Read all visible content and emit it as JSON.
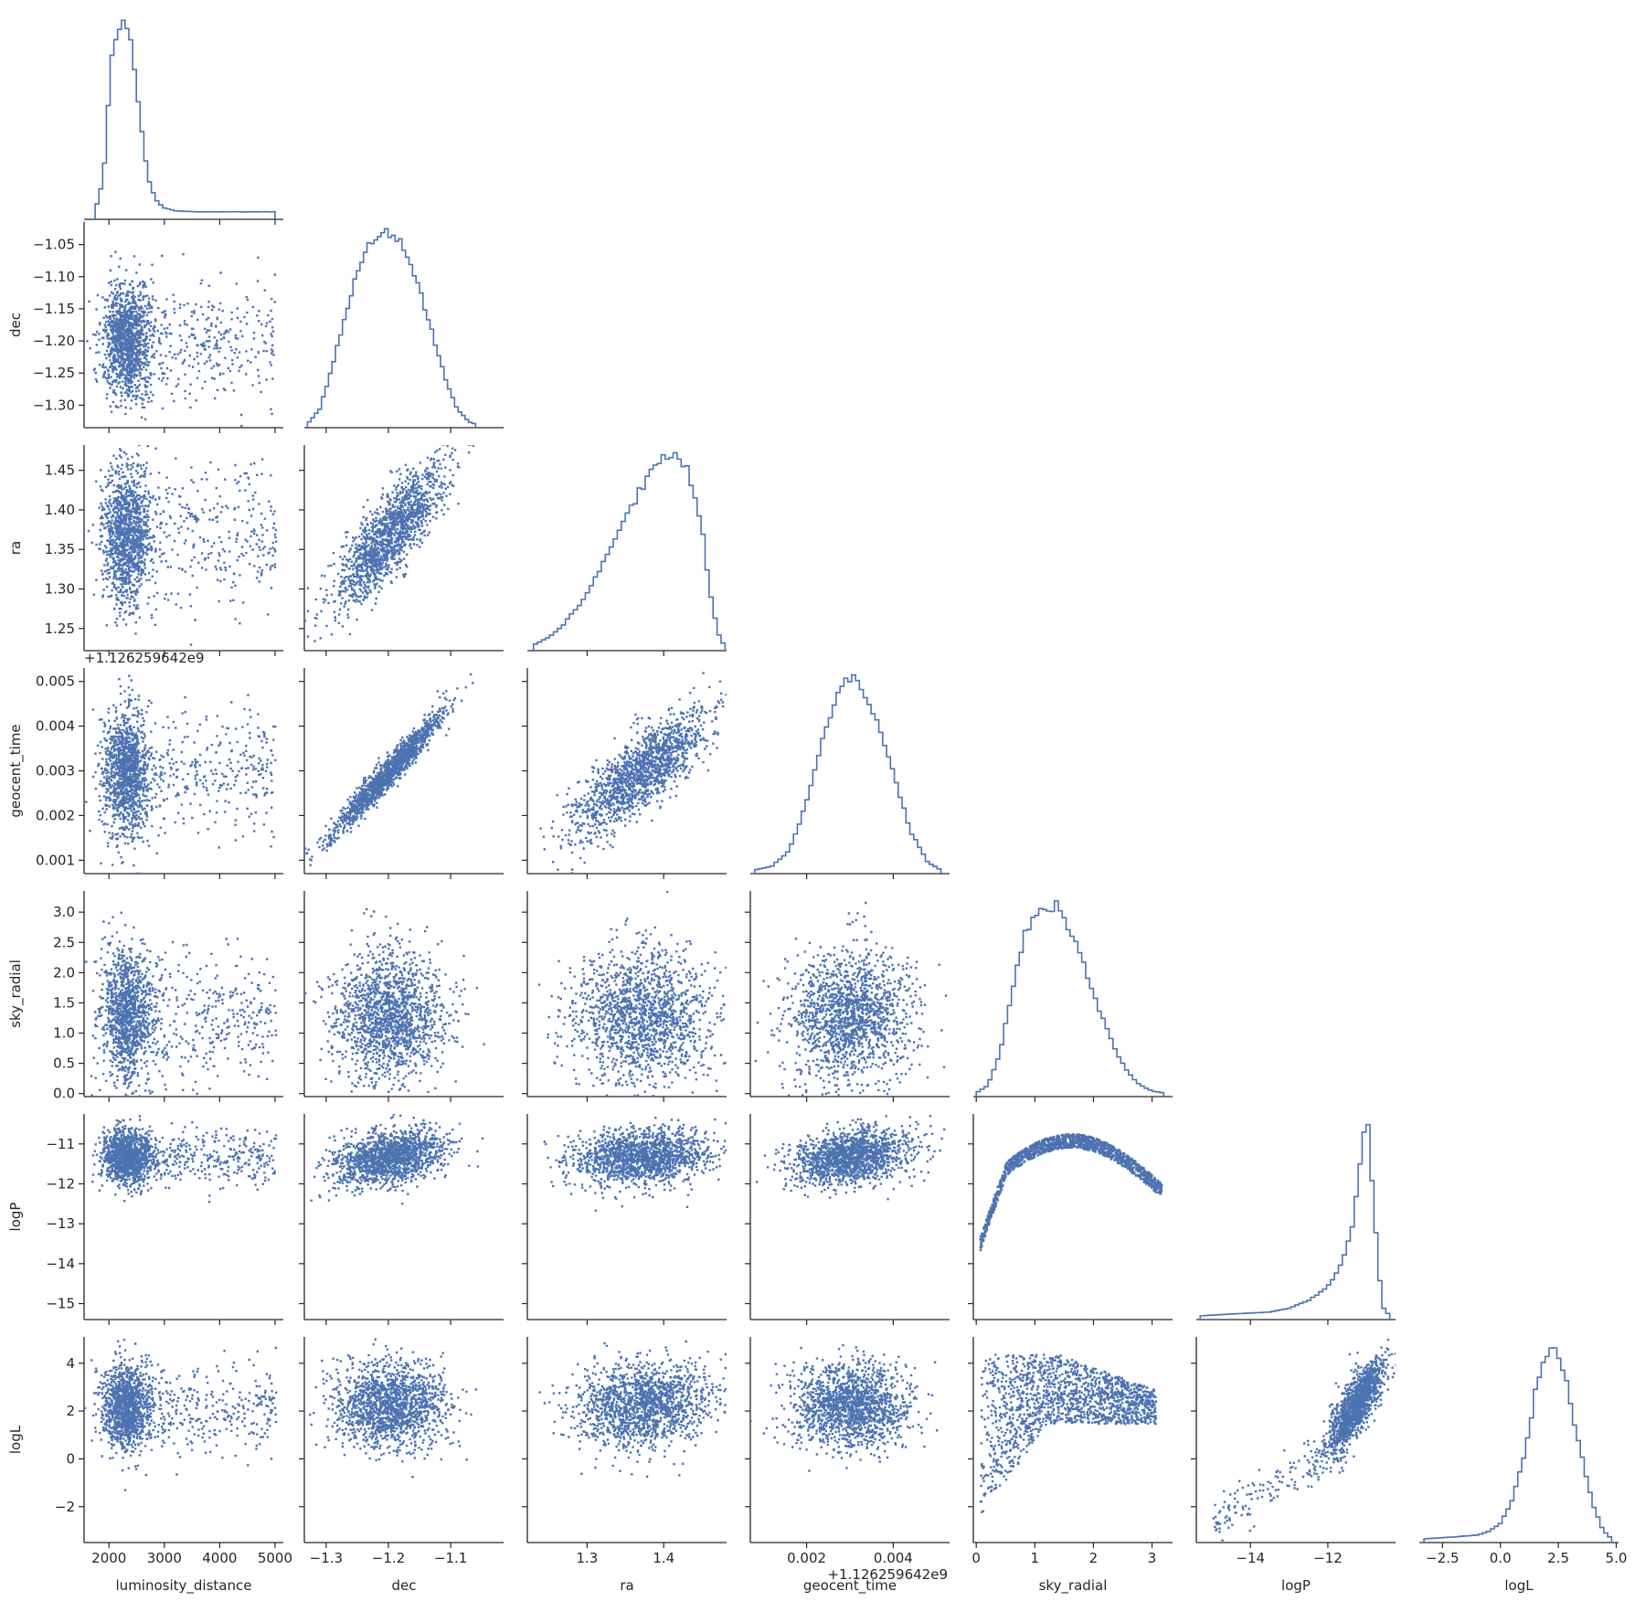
{
  "chart_data": {
    "type": "corner",
    "style": "seaborn-ticks",
    "colors": {
      "series": "#4c72b0",
      "axis": "#262626"
    },
    "grid": false,
    "parameters": [
      {
        "name": "luminosity_distance",
        "range": [
          1550,
          5150
        ],
        "ticks": [
          2000,
          3000,
          4000,
          5000
        ],
        "tick_labels": [
          "2000",
          "3000",
          "4000",
          "5000"
        ]
      },
      {
        "name": "dec",
        "range": [
          -1.335,
          -1.015
        ],
        "ticks": [
          -1.3,
          -1.25,
          -1.2,
          -1.15,
          -1.1,
          -1.05
        ],
        "tick_labels": [
          "−1.30",
          "−1.25",
          "−1.20",
          "−1.15",
          "−1.10",
          "−1.05"
        ],
        "x_ticks": [
          -1.3,
          -1.2,
          -1.1
        ],
        "x_tick_labels": [
          "−1.3",
          "−1.2",
          "−1.1"
        ]
      },
      {
        "name": "ra",
        "range": [
          1.222,
          1.482
        ],
        "ticks": [
          1.25,
          1.3,
          1.35,
          1.4,
          1.45
        ],
        "tick_labels": [
          "1.25",
          "1.30",
          "1.35",
          "1.40",
          "1.45"
        ],
        "x_ticks": [
          1.3,
          1.4
        ],
        "x_tick_labels": [
          "1.3",
          "1.4"
        ]
      },
      {
        "name": "geocent_time",
        "range": [
          0.0007,
          0.0053
        ],
        "ticks": [
          0.001,
          0.002,
          0.003,
          0.004,
          0.005
        ],
        "tick_labels": [
          "0.001",
          "0.002",
          "0.003",
          "0.004",
          "0.005"
        ],
        "x_ticks": [
          0.002,
          0.004
        ],
        "x_tick_labels": [
          "0.002",
          "0.004"
        ],
        "offset": "+1.126259642e9"
      },
      {
        "name": "sky_radial",
        "range": [
          -0.05,
          3.35
        ],
        "ticks": [
          0.0,
          0.5,
          1.0,
          1.5,
          2.0,
          2.5,
          3.0
        ],
        "tick_labels": [
          "0.0",
          "0.5",
          "1.0",
          "1.5",
          "2.0",
          "2.5",
          "3.0"
        ],
        "x_ticks": [
          0,
          1,
          2,
          3
        ],
        "x_tick_labels": [
          "0",
          "1",
          "2",
          "3"
        ]
      },
      {
        "name": "logP",
        "range": [
          -15.4,
          -10.25
        ],
        "ticks": [
          -15,
          -14,
          -13,
          -12,
          -11
        ],
        "tick_labels": [
          "−15",
          "−14",
          "−13",
          "−12",
          "−11"
        ],
        "x_ticks": [
          -14,
          -12
        ],
        "x_tick_labels": [
          "−14",
          "−12"
        ]
      },
      {
        "name": "logL",
        "range": [
          -3.5,
          5.1
        ],
        "ticks": [
          -2,
          0,
          2,
          4
        ],
        "tick_labels": [
          "−2",
          "0",
          "2",
          "4"
        ],
        "x_ticks": [
          -2.5,
          0.0,
          2.5,
          5.0
        ],
        "x_tick_labels": [
          "−2.5",
          "0.0",
          "2.5",
          "5.0"
        ]
      }
    ],
    "histograms": [
      {
        "parameter": "luminosity_distance",
        "x": [
          1750,
          1900,
          2050,
          2200,
          2300,
          2400,
          2550,
          2700,
          2850,
          3000,
          3200,
          3600,
          4000,
          4500,
          5000
        ],
        "y": [
          0.02,
          0.2,
          0.82,
          0.98,
          1.0,
          0.9,
          0.55,
          0.2,
          0.08,
          0.04,
          0.025,
          0.02,
          0.02,
          0.02,
          0.02
        ]
      },
      {
        "parameter": "dec",
        "x": [
          -1.33,
          -1.31,
          -1.29,
          -1.27,
          -1.25,
          -1.23,
          -1.21,
          -1.19,
          -1.17,
          -1.15,
          -1.13,
          -1.11,
          -1.09,
          -1.07,
          -1.06
        ],
        "y": [
          0.0,
          0.08,
          0.3,
          0.55,
          0.78,
          0.93,
          1.0,
          0.98,
          0.88,
          0.7,
          0.48,
          0.25,
          0.08,
          0.01,
          0.0
        ]
      },
      {
        "parameter": "ra",
        "x": [
          1.23,
          1.25,
          1.27,
          1.29,
          1.31,
          1.33,
          1.35,
          1.37,
          1.39,
          1.41,
          1.43,
          1.45,
          1.46,
          1.47,
          1.48
        ],
        "y": [
          0.01,
          0.05,
          0.12,
          0.22,
          0.35,
          0.5,
          0.66,
          0.82,
          0.95,
          1.0,
          0.92,
          0.62,
          0.3,
          0.08,
          0.0
        ]
      },
      {
        "parameter": "geocent_time",
        "x": [
          0.0008,
          0.0012,
          0.0016,
          0.002,
          0.0024,
          0.0028,
          0.003,
          0.0032,
          0.0036,
          0.004,
          0.0044,
          0.0048,
          0.0051
        ],
        "y": [
          0.0,
          0.02,
          0.1,
          0.35,
          0.7,
          0.95,
          1.0,
          0.96,
          0.8,
          0.5,
          0.2,
          0.04,
          0.0
        ]
      },
      {
        "parameter": "sky_radial",
        "x": [
          0.0,
          0.2,
          0.4,
          0.6,
          0.8,
          1.0,
          1.2,
          1.4,
          1.6,
          1.8,
          2.0,
          2.2,
          2.4,
          2.6,
          2.8,
          3.0,
          3.2
        ],
        "y": [
          0.0,
          0.04,
          0.2,
          0.5,
          0.8,
          0.93,
          0.94,
          0.98,
          0.85,
          0.7,
          0.52,
          0.35,
          0.2,
          0.1,
          0.04,
          0.01,
          0.0
        ]
      },
      {
        "parameter": "logP",
        "x": [
          -15.3,
          -14.5,
          -13.5,
          -13.0,
          -12.5,
          -12.0,
          -11.7,
          -11.4,
          -11.2,
          -11.05,
          -10.95,
          -10.8,
          -10.6,
          -10.4
        ],
        "y": [
          0.0,
          0.01,
          0.02,
          0.04,
          0.08,
          0.15,
          0.25,
          0.42,
          0.7,
          1.0,
          0.97,
          0.55,
          0.05,
          0.0
        ]
      },
      {
        "parameter": "logL",
        "x": [
          -3.3,
          -2.0,
          -1.0,
          -0.5,
          0.0,
          0.5,
          1.0,
          1.5,
          2.0,
          2.4,
          2.8,
          3.2,
          3.6,
          4.0,
          4.4,
          4.8
        ],
        "y": [
          0.0,
          0.01,
          0.02,
          0.04,
          0.08,
          0.2,
          0.42,
          0.75,
          0.95,
          1.0,
          0.85,
          0.6,
          0.38,
          0.18,
          0.05,
          0.0
        ]
      }
    ],
    "scatter_shapes": [
      {
        "x": "luminosity_distance",
        "y": "dec",
        "ux": 2300,
        "sx": 220,
        "uy": -1.2,
        "sy": 0.045,
        "corr": 0,
        "tail": "uniform-x"
      },
      {
        "x": "luminosity_distance",
        "y": "ra",
        "ux": 2300,
        "sx": 220,
        "uy": 1.37,
        "sy": 0.045,
        "corr": 0,
        "tail": "uniform-x"
      },
      {
        "x": "luminosity_distance",
        "y": "geocent_time",
        "ux": 2300,
        "sx": 220,
        "uy": 0.003,
        "sy": 0.0007,
        "corr": 0,
        "tail": "uniform-x"
      },
      {
        "x": "luminosity_distance",
        "y": "sky_radial",
        "ux": 2300,
        "sx": 220,
        "uy": 1.3,
        "sy": 0.55,
        "corr": 0,
        "tail": "uniform-x"
      },
      {
        "x": "luminosity_distance",
        "y": "logP",
        "ux": 2300,
        "sx": 220,
        "uy": -11.3,
        "sy": 0.35,
        "corr": 0,
        "tail": "uniform-x"
      },
      {
        "x": "luminosity_distance",
        "y": "logL",
        "ux": 2300,
        "sx": 220,
        "uy": 2.2,
        "sy": 0.9,
        "corr": 0,
        "tail": "uniform-x"
      },
      {
        "x": "dec",
        "y": "ra",
        "ux": -1.2,
        "sx": 0.045,
        "uy": 1.37,
        "sy": 0.045,
        "corr": 0.82
      },
      {
        "x": "dec",
        "y": "geocent_time",
        "ux": -1.2,
        "sx": 0.045,
        "uy": 0.003,
        "sy": 0.0007,
        "corr": 0.97
      },
      {
        "x": "dec",
        "y": "sky_radial",
        "ux": -1.2,
        "sx": 0.045,
        "uy": 1.3,
        "sy": 0.55,
        "corr": 0
      },
      {
        "x": "dec",
        "y": "logP",
        "ux": -1.2,
        "sx": 0.045,
        "uy": -11.3,
        "sy": 0.35,
        "corr": 0.35
      },
      {
        "x": "dec",
        "y": "logL",
        "ux": -1.2,
        "sx": 0.045,
        "uy": 2.3,
        "sy": 0.9,
        "corr": 0
      },
      {
        "x": "ra",
        "y": "geocent_time",
        "ux": 1.37,
        "sx": 0.045,
        "uy": 0.003,
        "sy": 0.0007,
        "corr": 0.8
      },
      {
        "x": "ra",
        "y": "sky_radial",
        "ux": 1.37,
        "sx": 0.045,
        "uy": 1.3,
        "sy": 0.55,
        "corr": 0
      },
      {
        "x": "ra",
        "y": "logP",
        "ux": 1.37,
        "sx": 0.045,
        "uy": -11.3,
        "sy": 0.35,
        "corr": 0.1
      },
      {
        "x": "ra",
        "y": "logL",
        "ux": 1.37,
        "sx": 0.045,
        "uy": 2.3,
        "sy": 0.9,
        "corr": 0.15
      },
      {
        "x": "geocent_time",
        "y": "sky_radial",
        "ux": 0.003,
        "sx": 0.0007,
        "uy": 1.3,
        "sy": 0.55,
        "corr": 0
      },
      {
        "x": "geocent_time",
        "y": "logP",
        "ux": 0.003,
        "sx": 0.0007,
        "uy": -11.3,
        "sy": 0.35,
        "corr": 0.35
      },
      {
        "x": "geocent_time",
        "y": "logL",
        "ux": 0.003,
        "sx": 0.0007,
        "uy": 2.3,
        "sy": 0.9,
        "corr": 0
      },
      {
        "x": "sky_radial",
        "y": "logP",
        "ux": 1.3,
        "sx": 0.55,
        "uy": -11.3,
        "sy": 0.35,
        "corr": 0,
        "shape": "arch"
      },
      {
        "x": "sky_radial",
        "y": "logL",
        "ux": 1.3,
        "sx": 0.55,
        "uy": 2.3,
        "sy": 0.9,
        "corr": 0.3,
        "shape": "wedge"
      },
      {
        "x": "logP",
        "y": "logL",
        "ux": -11.3,
        "sx": 0.35,
        "uy": 2.3,
        "sy": 0.9,
        "corr": 0.75,
        "tail": "lower-left"
      }
    ]
  }
}
